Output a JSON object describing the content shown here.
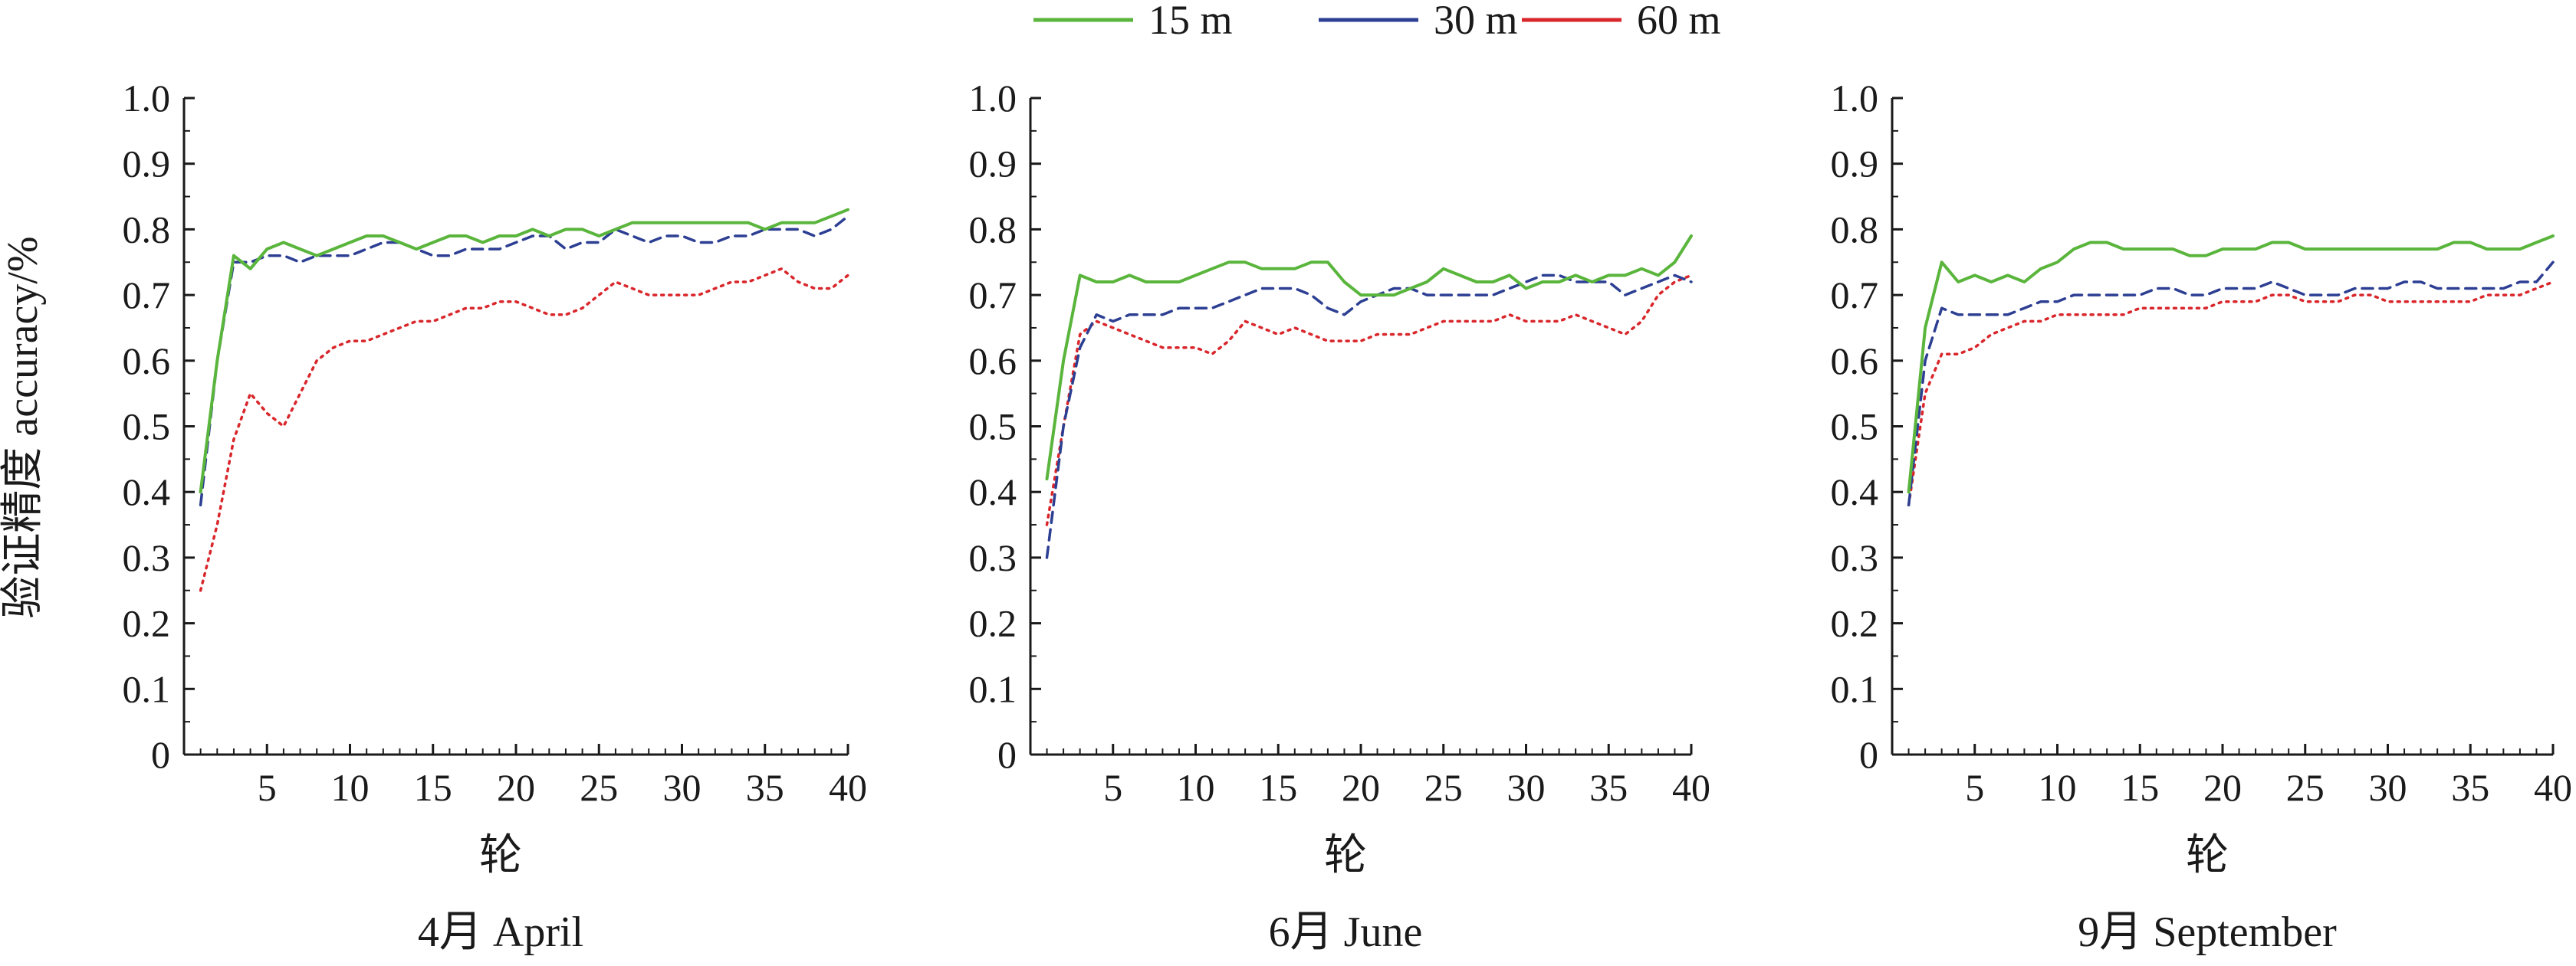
{
  "legend": [
    {
      "label": "15 m",
      "color": "#5ab53c",
      "dash": "solid"
    },
    {
      "label": "30 m",
      "color": "#2d3f93",
      "dash": "dashed"
    },
    {
      "label": "60 m",
      "color": "#d9262b",
      "dash": "dotted"
    }
  ],
  "ylabel": "验证精度 accuracy/%",
  "chart_data": [
    {
      "type": "line",
      "title": "4月 April",
      "xlabel": "轮",
      "ylabel": "验证精度 accuracy/%",
      "xlim": [
        0,
        40
      ],
      "ylim": [
        0,
        1.0
      ],
      "xticks": [
        5,
        10,
        15,
        20,
        25,
        30,
        35,
        40
      ],
      "yticks": [
        0,
        0.1,
        0.2,
        0.3,
        0.4,
        0.5,
        0.6,
        0.7,
        0.8,
        0.9,
        1.0
      ],
      "grid": false,
      "legend_position": "top-center",
      "series": [
        {
          "name": "15 m",
          "x": [
            1,
            2,
            3,
            4,
            5,
            6,
            7,
            8,
            9,
            10,
            11,
            12,
            13,
            14,
            15,
            16,
            17,
            18,
            19,
            20,
            21,
            22,
            23,
            24,
            25,
            26,
            27,
            28,
            29,
            30,
            31,
            32,
            33,
            34,
            35,
            36,
            37,
            38,
            39,
            40
          ],
          "values": [
            0.4,
            0.6,
            0.76,
            0.74,
            0.77,
            0.78,
            0.77,
            0.76,
            0.77,
            0.78,
            0.79,
            0.79,
            0.78,
            0.77,
            0.78,
            0.79,
            0.79,
            0.78,
            0.79,
            0.79,
            0.8,
            0.79,
            0.8,
            0.8,
            0.79,
            0.8,
            0.81,
            0.81,
            0.81,
            0.81,
            0.81,
            0.81,
            0.81,
            0.81,
            0.8,
            0.81,
            0.81,
            0.81,
            0.82,
            0.83
          ]
        },
        {
          "name": "30 m",
          "x": [
            1,
            2,
            3,
            4,
            5,
            6,
            7,
            8,
            9,
            10,
            11,
            12,
            13,
            14,
            15,
            16,
            17,
            18,
            19,
            20,
            21,
            22,
            23,
            24,
            25,
            26,
            27,
            28,
            29,
            30,
            31,
            32,
            33,
            34,
            35,
            36,
            37,
            38,
            39,
            40
          ],
          "values": [
            0.38,
            0.6,
            0.75,
            0.75,
            0.76,
            0.76,
            0.75,
            0.76,
            0.76,
            0.76,
            0.77,
            0.78,
            0.78,
            0.77,
            0.76,
            0.76,
            0.77,
            0.77,
            0.77,
            0.78,
            0.79,
            0.79,
            0.77,
            0.78,
            0.78,
            0.8,
            0.79,
            0.78,
            0.79,
            0.79,
            0.78,
            0.78,
            0.79,
            0.79,
            0.8,
            0.8,
            0.8,
            0.79,
            0.8,
            0.82
          ]
        },
        {
          "name": "60 m",
          "x": [
            1,
            2,
            3,
            4,
            5,
            6,
            7,
            8,
            9,
            10,
            11,
            12,
            13,
            14,
            15,
            16,
            17,
            18,
            19,
            20,
            21,
            22,
            23,
            24,
            25,
            26,
            27,
            28,
            29,
            30,
            31,
            32,
            33,
            34,
            35,
            36,
            37,
            38,
            39,
            40
          ],
          "values": [
            0.25,
            0.35,
            0.48,
            0.55,
            0.52,
            0.5,
            0.55,
            0.6,
            0.62,
            0.63,
            0.63,
            0.64,
            0.65,
            0.66,
            0.66,
            0.67,
            0.68,
            0.68,
            0.69,
            0.69,
            0.68,
            0.67,
            0.67,
            0.68,
            0.7,
            0.72,
            0.71,
            0.7,
            0.7,
            0.7,
            0.7,
            0.71,
            0.72,
            0.72,
            0.73,
            0.74,
            0.72,
            0.71,
            0.71,
            0.73
          ]
        }
      ]
    },
    {
      "type": "line",
      "title": "6月 June",
      "xlabel": "轮",
      "xlim": [
        0,
        40
      ],
      "ylim": [
        0,
        1.0
      ],
      "xticks": [
        5,
        10,
        15,
        20,
        25,
        30,
        35,
        40
      ],
      "yticks": [
        0,
        0.1,
        0.2,
        0.3,
        0.4,
        0.5,
        0.6,
        0.7,
        0.8,
        0.9,
        1.0
      ],
      "grid": false,
      "series": [
        {
          "name": "15 m",
          "x": [
            1,
            2,
            3,
            4,
            5,
            6,
            7,
            8,
            9,
            10,
            11,
            12,
            13,
            14,
            15,
            16,
            17,
            18,
            19,
            20,
            21,
            22,
            23,
            24,
            25,
            26,
            27,
            28,
            29,
            30,
            31,
            32,
            33,
            34,
            35,
            36,
            37,
            38,
            39,
            40
          ],
          "values": [
            0.42,
            0.6,
            0.73,
            0.72,
            0.72,
            0.73,
            0.72,
            0.72,
            0.72,
            0.73,
            0.74,
            0.75,
            0.75,
            0.74,
            0.74,
            0.74,
            0.75,
            0.75,
            0.72,
            0.7,
            0.7,
            0.7,
            0.71,
            0.72,
            0.74,
            0.73,
            0.72,
            0.72,
            0.73,
            0.71,
            0.72,
            0.72,
            0.73,
            0.72,
            0.73,
            0.73,
            0.74,
            0.73,
            0.75,
            0.79
          ]
        },
        {
          "name": "30 m",
          "x": [
            1,
            2,
            3,
            4,
            5,
            6,
            7,
            8,
            9,
            10,
            11,
            12,
            13,
            14,
            15,
            16,
            17,
            18,
            19,
            20,
            21,
            22,
            23,
            24,
            25,
            26,
            27,
            28,
            29,
            30,
            31,
            32,
            33,
            34,
            35,
            36,
            37,
            38,
            39,
            40
          ],
          "values": [
            0.3,
            0.5,
            0.62,
            0.67,
            0.66,
            0.67,
            0.67,
            0.67,
            0.68,
            0.68,
            0.68,
            0.69,
            0.7,
            0.71,
            0.71,
            0.71,
            0.7,
            0.68,
            0.67,
            0.69,
            0.7,
            0.71,
            0.71,
            0.7,
            0.7,
            0.7,
            0.7,
            0.7,
            0.71,
            0.72,
            0.73,
            0.73,
            0.72,
            0.72,
            0.72,
            0.7,
            0.71,
            0.72,
            0.73,
            0.72
          ]
        },
        {
          "name": "60 m",
          "x": [
            1,
            2,
            3,
            4,
            5,
            6,
            7,
            8,
            9,
            10,
            11,
            12,
            13,
            14,
            15,
            16,
            17,
            18,
            19,
            20,
            21,
            22,
            23,
            24,
            25,
            26,
            27,
            28,
            29,
            30,
            31,
            32,
            33,
            34,
            35,
            36,
            37,
            38,
            39,
            40
          ],
          "values": [
            0.35,
            0.5,
            0.64,
            0.66,
            0.65,
            0.64,
            0.63,
            0.62,
            0.62,
            0.62,
            0.61,
            0.63,
            0.66,
            0.65,
            0.64,
            0.65,
            0.64,
            0.63,
            0.63,
            0.63,
            0.64,
            0.64,
            0.64,
            0.65,
            0.66,
            0.66,
            0.66,
            0.66,
            0.67,
            0.66,
            0.66,
            0.66,
            0.67,
            0.66,
            0.65,
            0.64,
            0.66,
            0.7,
            0.72,
            0.73
          ]
        }
      ]
    },
    {
      "type": "line",
      "title": "9月 September",
      "xlabel": "轮",
      "xlim": [
        0,
        40
      ],
      "ylim": [
        0,
        1.0
      ],
      "xticks": [
        5,
        10,
        15,
        20,
        25,
        30,
        35,
        40
      ],
      "yticks": [
        0,
        0.1,
        0.2,
        0.3,
        0.4,
        0.5,
        0.6,
        0.7,
        0.8,
        0.9,
        1.0
      ],
      "grid": false,
      "series": [
        {
          "name": "15 m",
          "x": [
            1,
            2,
            3,
            4,
            5,
            6,
            7,
            8,
            9,
            10,
            11,
            12,
            13,
            14,
            15,
            16,
            17,
            18,
            19,
            20,
            21,
            22,
            23,
            24,
            25,
            26,
            27,
            28,
            29,
            30,
            31,
            32,
            33,
            34,
            35,
            36,
            37,
            38,
            39,
            40
          ],
          "values": [
            0.4,
            0.65,
            0.75,
            0.72,
            0.73,
            0.72,
            0.73,
            0.72,
            0.74,
            0.75,
            0.77,
            0.78,
            0.78,
            0.77,
            0.77,
            0.77,
            0.77,
            0.76,
            0.76,
            0.77,
            0.77,
            0.77,
            0.78,
            0.78,
            0.77,
            0.77,
            0.77,
            0.77,
            0.77,
            0.77,
            0.77,
            0.77,
            0.77,
            0.78,
            0.78,
            0.77,
            0.77,
            0.77,
            0.78,
            0.79
          ]
        },
        {
          "name": "30 m",
          "x": [
            1,
            2,
            3,
            4,
            5,
            6,
            7,
            8,
            9,
            10,
            11,
            12,
            13,
            14,
            15,
            16,
            17,
            18,
            19,
            20,
            21,
            22,
            23,
            24,
            25,
            26,
            27,
            28,
            29,
            30,
            31,
            32,
            33,
            34,
            35,
            36,
            37,
            38,
            39,
            40
          ],
          "values": [
            0.38,
            0.6,
            0.68,
            0.67,
            0.67,
            0.67,
            0.67,
            0.68,
            0.69,
            0.69,
            0.7,
            0.7,
            0.7,
            0.7,
            0.7,
            0.71,
            0.71,
            0.7,
            0.7,
            0.71,
            0.71,
            0.71,
            0.72,
            0.71,
            0.7,
            0.7,
            0.7,
            0.71,
            0.71,
            0.71,
            0.72,
            0.72,
            0.71,
            0.71,
            0.71,
            0.71,
            0.71,
            0.72,
            0.72,
            0.75
          ]
        },
        {
          "name": "60 m",
          "x": [
            1,
            2,
            3,
            4,
            5,
            6,
            7,
            8,
            9,
            10,
            11,
            12,
            13,
            14,
            15,
            16,
            17,
            18,
            19,
            20,
            21,
            22,
            23,
            24,
            25,
            26,
            27,
            28,
            29,
            30,
            31,
            32,
            33,
            34,
            35,
            36,
            37,
            38,
            39,
            40
          ],
          "values": [
            0.38,
            0.55,
            0.61,
            0.61,
            0.62,
            0.64,
            0.65,
            0.66,
            0.66,
            0.67,
            0.67,
            0.67,
            0.67,
            0.67,
            0.68,
            0.68,
            0.68,
            0.68,
            0.68,
            0.69,
            0.69,
            0.69,
            0.7,
            0.7,
            0.69,
            0.69,
            0.69,
            0.7,
            0.7,
            0.69,
            0.69,
            0.69,
            0.69,
            0.69,
            0.69,
            0.7,
            0.7,
            0.7,
            0.71,
            0.72
          ]
        }
      ]
    }
  ]
}
